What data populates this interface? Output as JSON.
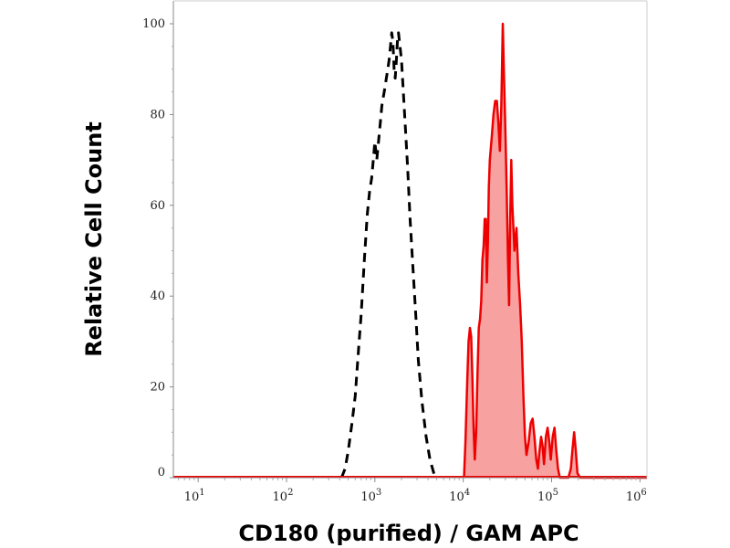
{
  "chart_data": {
    "type": "area",
    "xlabel": "CD180 (purified) / GAM APC",
    "ylabel": "Relative Cell Count",
    "xscale": "log",
    "xlim": [
      5,
      1200000
    ],
    "ylim": [
      0,
      100
    ],
    "grid": false,
    "legend": "none",
    "y_ticks": [
      {
        "value": 0,
        "label": "0"
      },
      {
        "value": 20,
        "label": "20"
      },
      {
        "value": 40,
        "label": "40"
      },
      {
        "value": 60,
        "label": "60"
      },
      {
        "value": 80,
        "label": "80"
      },
      {
        "value": 100,
        "label": "100"
      }
    ],
    "x_ticks": [
      {
        "value": 10,
        "base": "10",
        "exp": "1"
      },
      {
        "value": 100,
        "base": "10",
        "exp": "2"
      },
      {
        "value": 1000,
        "base": "10",
        "exp": "3"
      },
      {
        "value": 10000,
        "base": "10",
        "exp": "4"
      },
      {
        "value": 100000,
        "base": "10",
        "exp": "5"
      },
      {
        "value": 1000000,
        "base": "10",
        "exp": "6"
      }
    ],
    "series": [
      {
        "style": "dashed",
        "color": "#000000",
        "fill": "none",
        "points": [
          [
            420,
            0
          ],
          [
            460,
            2
          ],
          [
            500,
            6
          ],
          [
            550,
            12
          ],
          [
            600,
            18
          ],
          [
            640,
            26
          ],
          [
            700,
            36
          ],
          [
            760,
            48
          ],
          [
            820,
            58
          ],
          [
            870,
            63
          ],
          [
            920,
            66
          ],
          [
            960,
            70
          ],
          [
            1000,
            74
          ],
          [
            1050,
            70
          ],
          [
            1100,
            74
          ],
          [
            1150,
            78
          ],
          [
            1200,
            82
          ],
          [
            1250,
            84
          ],
          [
            1300,
            86
          ],
          [
            1350,
            88
          ],
          [
            1400,
            90
          ],
          [
            1450,
            92
          ],
          [
            1500,
            95
          ],
          [
            1550,
            98
          ],
          [
            1600,
            96
          ],
          [
            1650,
            90
          ],
          [
            1700,
            88
          ],
          [
            1750,
            92
          ],
          [
            1800,
            96
          ],
          [
            1850,
            98
          ],
          [
            1900,
            96
          ],
          [
            2000,
            92
          ],
          [
            2100,
            85
          ],
          [
            2200,
            78
          ],
          [
            2350,
            68
          ],
          [
            2500,
            57
          ],
          [
            2700,
            46
          ],
          [
            2900,
            36
          ],
          [
            3100,
            26
          ],
          [
            3400,
            17
          ],
          [
            3800,
            9
          ],
          [
            4200,
            4
          ],
          [
            4800,
            0
          ]
        ]
      },
      {
        "style": "solid",
        "color": "#ee0000",
        "fill": "#f7a1a1",
        "points": [
          [
            10200,
            0
          ],
          [
            10600,
            8
          ],
          [
            11100,
            21
          ],
          [
            11500,
            30
          ],
          [
            11900,
            33
          ],
          [
            12300,
            31
          ],
          [
            12700,
            22
          ],
          [
            13100,
            11
          ],
          [
            13500,
            4
          ],
          [
            14000,
            10
          ],
          [
            14500,
            23
          ],
          [
            15000,
            33
          ],
          [
            15500,
            35
          ],
          [
            16000,
            39
          ],
          [
            16500,
            48
          ],
          [
            17000,
            51
          ],
          [
            17500,
            57
          ],
          [
            18000,
            57
          ],
          [
            18500,
            43
          ],
          [
            19000,
            52
          ],
          [
            19500,
            64
          ],
          [
            20000,
            70
          ],
          [
            21000,
            75
          ],
          [
            22000,
            80
          ],
          [
            23000,
            83
          ],
          [
            24000,
            83
          ],
          [
            25000,
            78
          ],
          [
            26000,
            72
          ],
          [
            27000,
            82
          ],
          [
            28000,
            100
          ],
          [
            29000,
            88
          ],
          [
            30000,
            76
          ],
          [
            31000,
            64
          ],
          [
            32000,
            49
          ],
          [
            33000,
            38
          ],
          [
            34000,
            57
          ],
          [
            35000,
            70
          ],
          [
            36000,
            60
          ],
          [
            38000,
            50
          ],
          [
            40000,
            55
          ],
          [
            42000,
            45
          ],
          [
            44000,
            38
          ],
          [
            46000,
            30
          ],
          [
            48000,
            18
          ],
          [
            50000,
            9
          ],
          [
            52000,
            5
          ],
          [
            55000,
            8
          ],
          [
            58000,
            12
          ],
          [
            61000,
            13
          ],
          [
            64000,
            9
          ],
          [
            67000,
            4
          ],
          [
            70000,
            2
          ],
          [
            73000,
            6
          ],
          [
            76000,
            9
          ],
          [
            79000,
            7
          ],
          [
            82000,
            3
          ],
          [
            86000,
            9
          ],
          [
            90000,
            11
          ],
          [
            94000,
            8
          ],
          [
            98000,
            4
          ],
          [
            103000,
            9
          ],
          [
            108000,
            11
          ],
          [
            113000,
            6
          ],
          [
            118000,
            2
          ],
          [
            124000,
            0
          ],
          [
            140000,
            0
          ],
          [
            155000,
            0
          ],
          [
            165000,
            2
          ],
          [
            172000,
            6
          ],
          [
            180000,
            10
          ],
          [
            188000,
            6
          ],
          [
            196000,
            1
          ],
          [
            210000,
            0
          ],
          [
            1200000,
            0
          ]
        ]
      }
    ]
  }
}
